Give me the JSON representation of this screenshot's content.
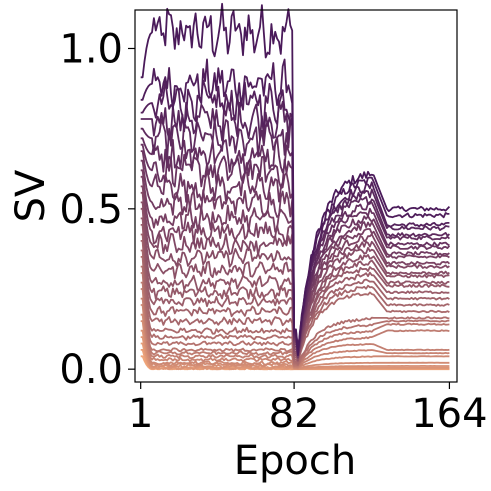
{
  "chart_data": {
    "type": "line",
    "title": "",
    "xlabel": "Epoch",
    "ylabel": "SV",
    "xlim": [
      -2,
      168
    ],
    "ylim": [
      -0.04,
      1.12
    ],
    "xticks": [
      {
        "value": 1,
        "label": "1"
      },
      {
        "value": 82,
        "label": "82"
      },
      {
        "value": 164,
        "label": "164"
      }
    ],
    "yticks": [
      {
        "value": 0.0,
        "label": "0.0"
      },
      {
        "value": 0.5,
        "label": "0.5"
      },
      {
        "value": 1.0,
        "label": "1.0"
      }
    ],
    "grid": false,
    "legend": "none",
    "colormap": "flare",
    "color_range": [
      "#4a1a5a",
      "#f0a57a"
    ],
    "phase_epochs": [
      1,
      82,
      123,
      164
    ],
    "series_summary": [
      {
        "start": 0.91,
        "plateau": 1.05,
        "mid": 0.62,
        "end": 0.5
      },
      {
        "start": 0.84,
        "plateau": 0.89,
        "mid": 0.6,
        "end": 0.48
      },
      {
        "start": 0.8,
        "plateau": 0.83,
        "mid": 0.58,
        "end": 0.45
      },
      {
        "start": 0.78,
        "plateau": 0.78,
        "mid": 0.56,
        "end": 0.44
      },
      {
        "start": 0.75,
        "plateau": 0.72,
        "mid": 0.54,
        "end": 0.42
      },
      {
        "start": 0.72,
        "plateau": 0.67,
        "mid": 0.52,
        "end": 0.41
      },
      {
        "start": 0.7,
        "plateau": 0.62,
        "mid": 0.5,
        "end": 0.39
      },
      {
        "start": 0.68,
        "plateau": 0.57,
        "mid": 0.48,
        "end": 0.38
      },
      {
        "start": 0.65,
        "plateau": 0.52,
        "mid": 0.46,
        "end": 0.36
      },
      {
        "start": 0.62,
        "plateau": 0.47,
        "mid": 0.44,
        "end": 0.35
      },
      {
        "start": 0.6,
        "plateau": 0.43,
        "mid": 0.42,
        "end": 0.33
      },
      {
        "start": 0.57,
        "plateau": 0.39,
        "mid": 0.4,
        "end": 0.32
      },
      {
        "start": 0.55,
        "plateau": 0.35,
        "mid": 0.38,
        "end": 0.3
      },
      {
        "start": 0.52,
        "plateau": 0.31,
        "mid": 0.36,
        "end": 0.29
      },
      {
        "start": 0.5,
        "plateau": 0.27,
        "mid": 0.34,
        "end": 0.27
      },
      {
        "start": 0.47,
        "plateau": 0.24,
        "mid": 0.32,
        "end": 0.26
      },
      {
        "start": 0.45,
        "plateau": 0.21,
        "mid": 0.3,
        "end": 0.24
      },
      {
        "start": 0.42,
        "plateau": 0.18,
        "mid": 0.28,
        "end": 0.22
      },
      {
        "start": 0.4,
        "plateau": 0.15,
        "mid": 0.26,
        "end": 0.2
      },
      {
        "start": 0.37,
        "plateau": 0.12,
        "mid": 0.24,
        "end": 0.18
      },
      {
        "start": 0.35,
        "plateau": 0.1,
        "mid": 0.16,
        "end": 0.16
      },
      {
        "start": 0.32,
        "plateau": 0.08,
        "mid": 0.14,
        "end": 0.15
      },
      {
        "start": 0.3,
        "plateau": 0.06,
        "mid": 0.12,
        "end": 0.14
      },
      {
        "start": 0.27,
        "plateau": 0.05,
        "mid": 0.1,
        "end": 0.12
      },
      {
        "start": 0.25,
        "plateau": 0.04,
        "mid": 0.08,
        "end": 0.06
      },
      {
        "start": 0.22,
        "plateau": 0.03,
        "mid": 0.06,
        "end": 0.05
      },
      {
        "start": 0.2,
        "plateau": 0.02,
        "mid": 0.04,
        "end": 0.04
      },
      {
        "start": 0.17,
        "plateau": 0.015,
        "mid": 0.02,
        "end": 0.02
      },
      {
        "start": 0.15,
        "plateau": 0.01,
        "mid": 0.01,
        "end": 0.01
      },
      {
        "start": 0.12,
        "plateau": 0.005,
        "mid": 0.005,
        "end": 0.005
      },
      {
        "start": 0.1,
        "plateau": 0.003,
        "mid": 0.003,
        "end": 0.003
      },
      {
        "start": 0.08,
        "plateau": 0.002,
        "mid": 0.002,
        "end": 0.002
      },
      {
        "start": 0.06,
        "plateau": 0.001,
        "mid": 0.001,
        "end": 0.001
      },
      {
        "start": 0.04,
        "plateau": 0.0,
        "mid": 0.0,
        "end": 0.0
      }
    ]
  }
}
